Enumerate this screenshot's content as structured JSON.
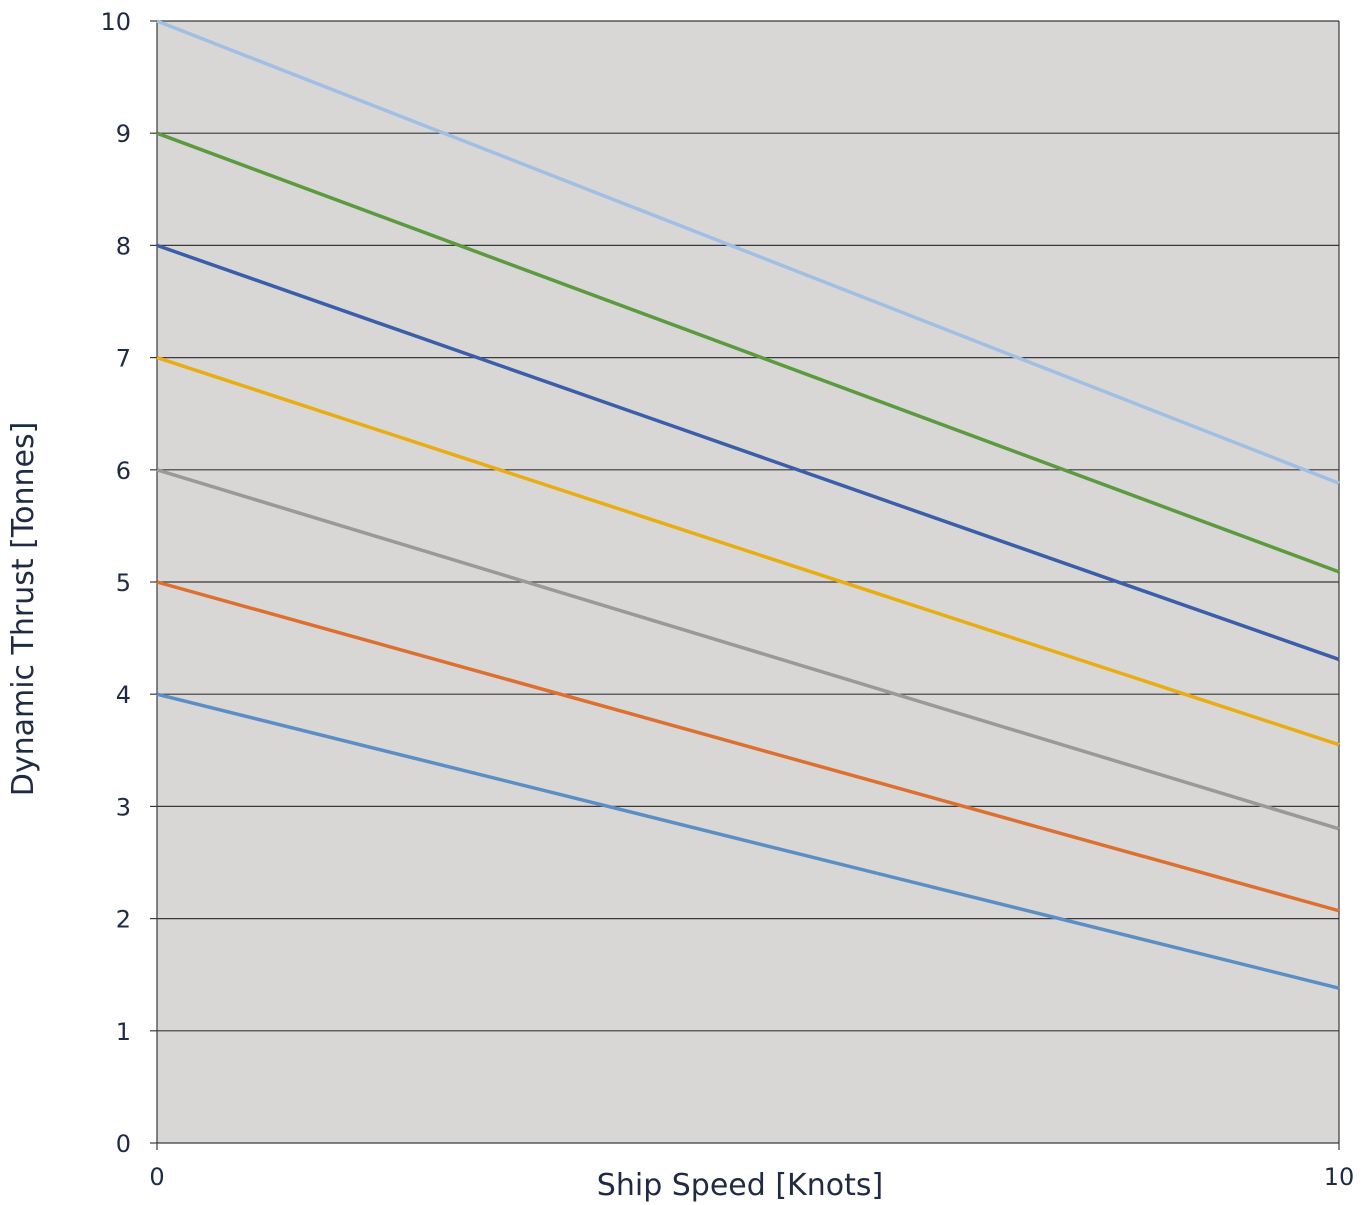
{
  "chart_data": {
    "type": "line",
    "title": "",
    "xlabel": "Ship Speed [Knots]",
    "ylabel": "Dynamic Thrust [Tonnes]",
    "xlim": [
      0,
      10
    ],
    "ylim": [
      0,
      10
    ],
    "x_ticks": [
      "0",
      "10"
    ],
    "y_ticks": [
      "0",
      "1",
      "2",
      "3",
      "4",
      "5",
      "6",
      "7",
      "8",
      "9",
      "10"
    ],
    "grid": "horizontal",
    "legend": "none",
    "plot_background": "#d9d7d6",
    "gridline_color": "#3a3a3a",
    "text_color": "#1f2a44",
    "series": [
      {
        "color": "#9fc0e4",
        "x": [
          0,
          10
        ],
        "y": [
          10,
          5.88
        ]
      },
      {
        "color": "#5b9a3f",
        "x": [
          0,
          10
        ],
        "y": [
          9,
          5.09
        ]
      },
      {
        "color": "#3a5ea8",
        "x": [
          0,
          10
        ],
        "y": [
          8,
          4.31
        ]
      },
      {
        "color": "#e8ad12",
        "x": [
          0,
          10
        ],
        "y": [
          7,
          3.55
        ]
      },
      {
        "color": "#999999",
        "x": [
          0,
          10
        ],
        "y": [
          6,
          2.8
        ]
      },
      {
        "color": "#dd7030",
        "x": [
          0,
          10
        ],
        "y": [
          5,
          2.07
        ]
      },
      {
        "color": "#5a8ec4",
        "x": [
          0,
          10
        ],
        "y": [
          4,
          1.38
        ]
      }
    ]
  }
}
